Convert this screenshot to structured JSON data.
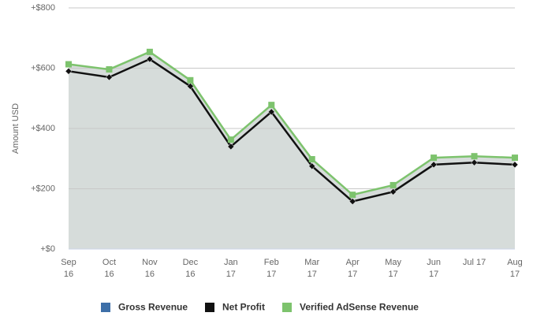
{
  "chart_data": {
    "type": "line",
    "y_label": "Amount USD",
    "categories": [
      "Sep 16",
      "Oct 16",
      "Nov 16",
      "Dec 16",
      "Jan 17",
      "Feb 17",
      "Mar 17",
      "Apr 17",
      "May 17",
      "Jun 17",
      "Jul 17",
      "Aug 17"
    ],
    "series": [
      {
        "name": "Gross Revenue",
        "color": "#3d6fa8",
        "values": [
          null,
          null,
          null,
          null,
          null,
          null,
          null,
          null,
          null,
          null,
          null,
          null
        ]
      },
      {
        "name": "Net Profit",
        "color": "#111111",
        "marker": "diamond",
        "values": [
          590,
          570,
          630,
          540,
          340,
          455,
          275,
          158,
          190,
          280,
          287,
          280
        ]
      },
      {
        "name": "Verified AdSense Revenue",
        "color": "#7dc36d",
        "marker": "square",
        "area_color": "#d6dcda",
        "values": [
          613,
          596,
          654,
          560,
          363,
          478,
          298,
          180,
          212,
          303,
          308,
          303
        ]
      }
    ],
    "ylim": [
      0,
      800
    ],
    "yticks": [
      {
        "value": 0,
        "label": "+$0"
      },
      {
        "value": 200,
        "label": "+$200"
      },
      {
        "value": 400,
        "label": "+$400"
      },
      {
        "value": 600,
        "label": "+$600"
      },
      {
        "value": 800,
        "label": "+$800"
      }
    ],
    "grid": true,
    "legend": "bottom"
  }
}
